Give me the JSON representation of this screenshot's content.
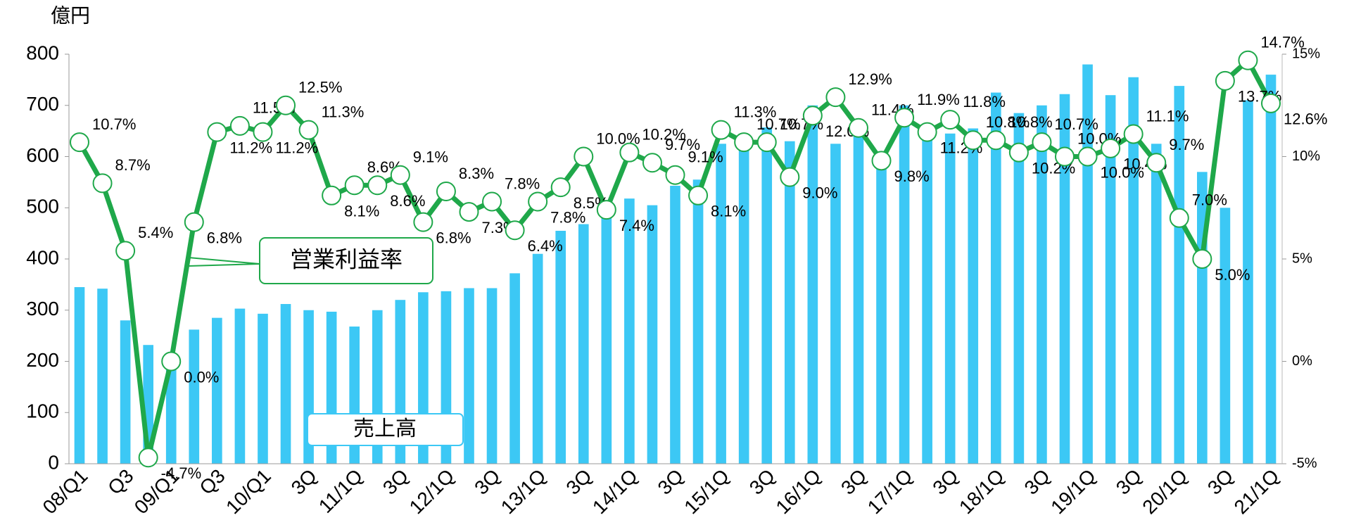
{
  "chart_data": {
    "type": "bar_line",
    "y_label": "億円",
    "categories": [
      "08/Q1",
      null,
      "Q3",
      null,
      "09/Q1",
      null,
      "Q3",
      null,
      "10/Q1",
      null,
      "3Q",
      null,
      "11/1Q",
      null,
      "3Q",
      null,
      "12/1Q",
      null,
      "3Q",
      null,
      "13/1Q",
      null,
      "3Q",
      null,
      "14/1Q",
      null,
      "3Q",
      null,
      "15/1Q",
      null,
      "3Q",
      null,
      "16/1Q",
      null,
      "3Q",
      null,
      "17/1Q",
      null,
      "3Q",
      null,
      "18/1Q",
      null,
      "3Q",
      null,
      "19/1Q",
      null,
      "3Q",
      null,
      "20/1Q",
      null,
      "3Q",
      null,
      "21/1Q"
    ],
    "series": [
      {
        "name": "売上高",
        "color": "#3cc8f5",
        "type": "bar",
        "values": [
          345,
          342,
          280,
          232,
          215,
          262,
          285,
          303,
          293,
          312,
          300,
          297,
          268,
          300,
          320,
          335,
          337,
          343,
          343,
          372,
          410,
          455,
          468,
          490,
          518,
          505,
          543,
          555,
          625,
          640,
          657,
          630,
          700,
          625,
          663,
          597,
          700,
          650,
          645,
          655,
          725,
          685,
          700,
          722,
          780,
          720,
          755,
          625,
          738,
          570,
          500,
          710,
          760
        ]
      },
      {
        "name": "営業利益率",
        "color": "#1fa84a",
        "type": "line",
        "axis": "y2",
        "values": [
          10.7,
          8.7,
          5.4,
          -4.7,
          0.0,
          6.8,
          11.2,
          11.5,
          11.2,
          12.5,
          11.3,
          8.1,
          8.6,
          8.6,
          9.1,
          6.8,
          8.3,
          7.3,
          7.8,
          6.4,
          7.8,
          8.5,
          10.0,
          7.4,
          10.2,
          9.7,
          9.1,
          8.1,
          11.3,
          10.7,
          10.7,
          9.0,
          12.0,
          12.9,
          11.4,
          9.8,
          11.9,
          11.2,
          11.8,
          10.8,
          10.8,
          10.2,
          10.7,
          10.0,
          10.0,
          10.4,
          11.1,
          9.7,
          7.0,
          5.0,
          13.7,
          14.7,
          12.6
        ],
        "value_labels": [
          "10.7%",
          "8.7%",
          "5.4%",
          "-4.7%",
          "0.0%",
          "6.8%",
          "11.2%",
          "11.5%",
          "11.2%",
          "12.5%",
          "11.3%",
          "8.1%",
          "8.6%",
          "8.6%",
          "9.1%",
          "6.8%",
          "8.3%",
          "7.3%",
          "7.8%",
          "6.4%",
          "7.8%",
          "8.5%",
          "10.0%",
          "7.4%",
          "10.2%",
          "9.7%",
          "9.1%",
          "8.1%",
          "11.3%",
          "10.7%",
          "10.7%",
          "9.0%",
          "12.0%",
          "12.9%",
          "11.4%",
          "9.8%",
          "11.9%",
          "11.2%",
          "11.8%",
          "10.8%",
          "10.8%",
          "10.2%",
          "10.7%",
          "10.0%",
          "10.0%",
          "10.4%",
          "11.1%",
          "9.7%",
          "7.0%",
          "5.0%",
          "13.7%",
          "14.7%",
          "12.6%"
        ]
      }
    ],
    "ylim": [
      0,
      800
    ],
    "yticks": [
      0,
      100,
      200,
      300,
      400,
      500,
      600,
      700,
      800
    ],
    "y2lim": [
      -5,
      15
    ],
    "y2ticks": [
      {
        "value": -5,
        "label": "-5%"
      },
      {
        "value": 0,
        "label": "0%"
      },
      {
        "value": 5,
        "label": "5%"
      },
      {
        "value": 10,
        "label": "10%"
      },
      {
        "value": 15,
        "label": "15%"
      }
    ],
    "grid": false
  }
}
